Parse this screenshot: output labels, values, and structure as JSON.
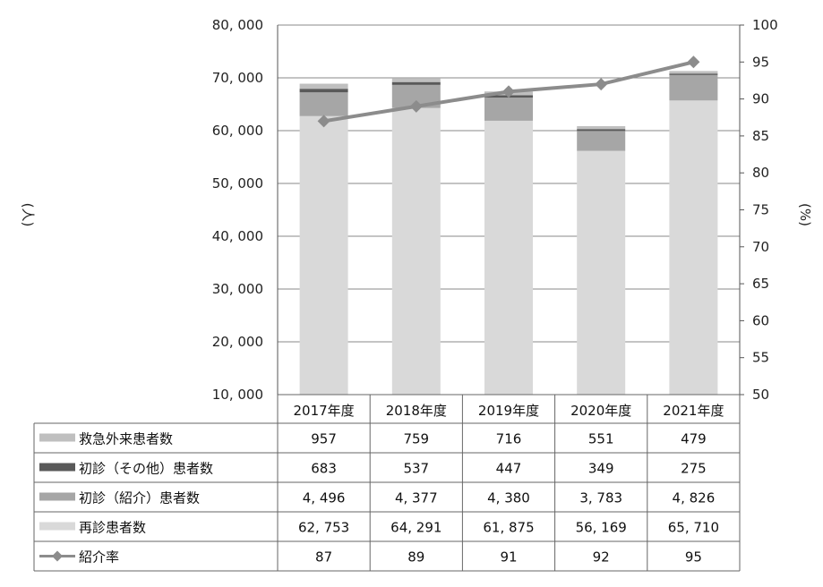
{
  "chart_data": {
    "type": "bar",
    "stacked": true,
    "categories": [
      "2017年度",
      "2018年度",
      "2019年度",
      "2020年度",
      "2021年度"
    ],
    "series": [
      {
        "name": "再診患者数",
        "values": [
          62753,
          64291,
          61875,
          56169,
          65710
        ],
        "display": [
          "62, 753",
          "64, 291",
          "61, 875",
          "56, 169",
          "65, 710"
        ],
        "color": "#d9d9d9"
      },
      {
        "name": "初診（紹介）患者数",
        "values": [
          4496,
          4377,
          4380,
          3783,
          4826
        ],
        "display": [
          "4, 496",
          "4, 377",
          "4, 380",
          "3, 783",
          "4, 826"
        ],
        "color": "#a6a6a6"
      },
      {
        "name": "初診（その他）患者数",
        "values": [
          683,
          537,
          447,
          349,
          275
        ],
        "display": [
          "683",
          "537",
          "447",
          "349",
          "275"
        ],
        "color": "#595959"
      },
      {
        "name": "救急外来患者数",
        "values": [
          957,
          759,
          716,
          551,
          479
        ],
        "display": [
          "957",
          "759",
          "716",
          "551",
          "479"
        ],
        "color": "#bfbfbf"
      }
    ],
    "line_series": {
      "name": "紹介率",
      "values": [
        87,
        89,
        91,
        92,
        95
      ],
      "display": [
        "87",
        "89",
        "91",
        "92",
        "95"
      ],
      "color": "#8c8c8c",
      "axis": "right"
    },
    "y_left": {
      "label": "(人)",
      "ylim": [
        10000,
        80000
      ],
      "ticks": [
        "80, 000",
        "70, 000",
        "60, 000",
        "50, 000",
        "40, 000",
        "30, 000",
        "20, 000",
        "10, 000"
      ],
      "tick_values": [
        80000,
        70000,
        60000,
        50000,
        40000,
        30000,
        20000,
        10000
      ]
    },
    "y_right": {
      "label": "(%)",
      "ylim": [
        50,
        100
      ],
      "ticks": [
        "100",
        "95",
        "90",
        "85",
        "80",
        "75",
        "70",
        "65",
        "60",
        "55",
        "50"
      ],
      "tick_values": [
        100,
        95,
        90,
        85,
        80,
        75,
        70,
        65,
        60,
        55,
        50
      ]
    },
    "table_row_order": [
      "救急外来患者数",
      "初診（その他）患者数",
      "初診（紹介）患者数",
      "再診患者数",
      "紹介率"
    ],
    "grid": true,
    "legend": "data-table"
  }
}
